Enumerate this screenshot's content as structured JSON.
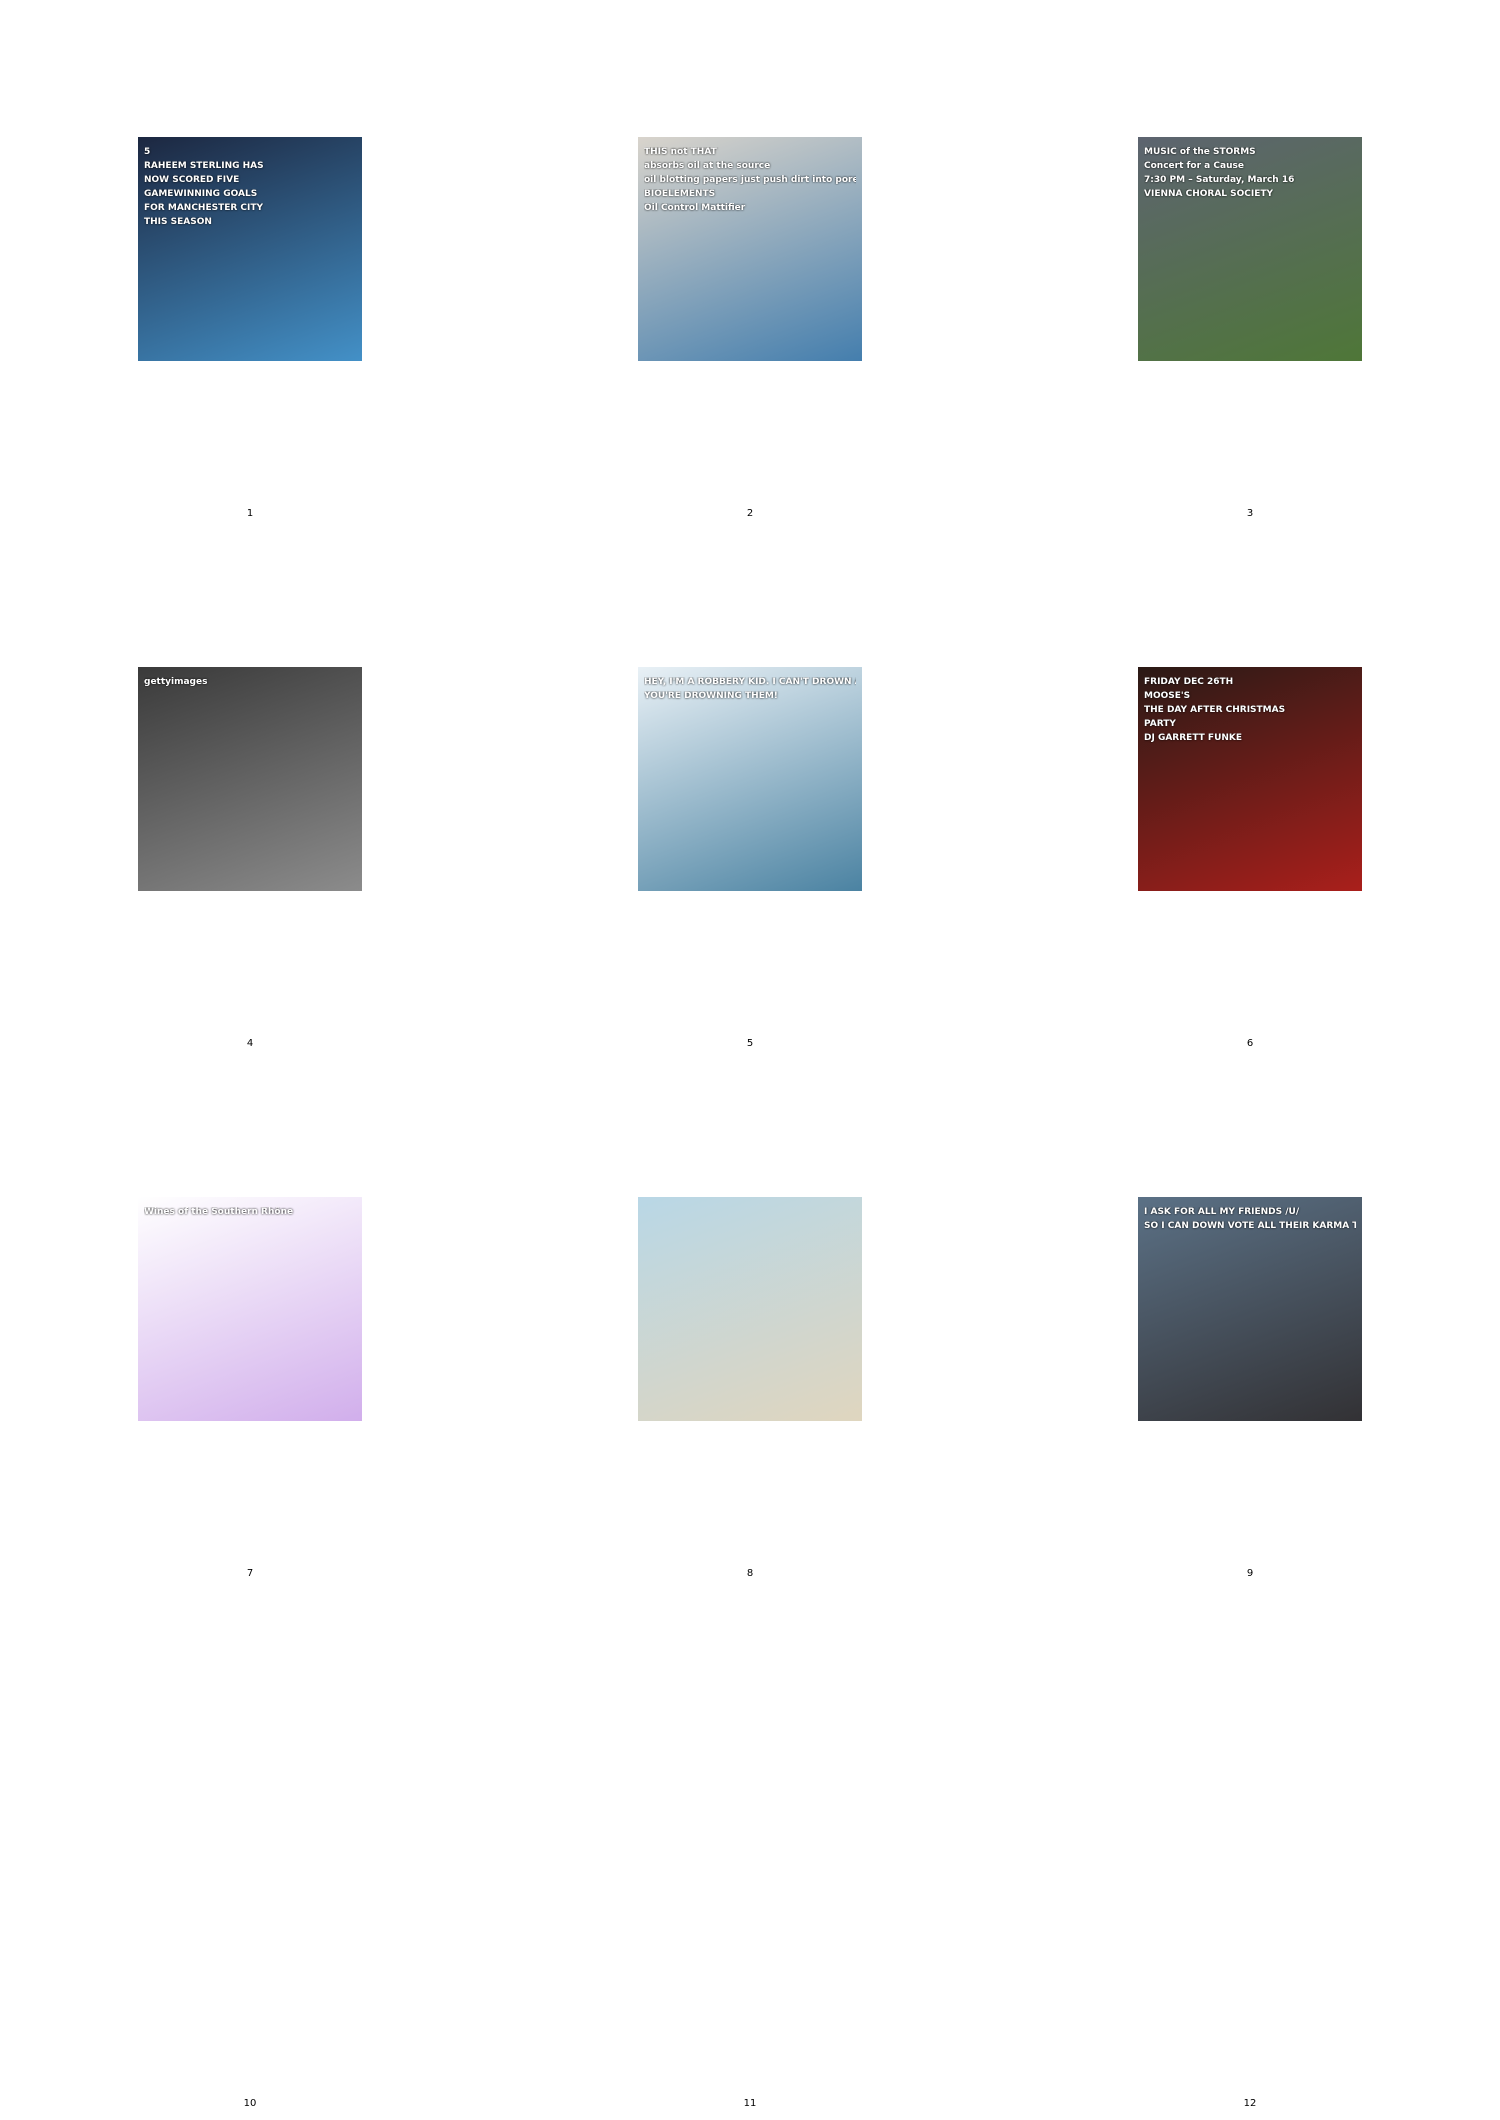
{
  "panels": [
    {
      "number": "1",
      "caption_lines": [
        "5",
        "RAHEEM STERLING HAS",
        "NOW SCORED FIVE",
        "GAMEWINNING GOALS",
        "FOR MANCHESTER CITY",
        "THIS SEASON"
      ],
      "colors": {
        "bg": "#1c2740",
        "accent": "#4aa3df"
      }
    },
    {
      "number": "2",
      "caption_lines": [
        "THIS not THAT",
        "absorbs oil at the source",
        "oil blotting papers just push dirt into pores",
        "BIOELEMENTS",
        "Oil Control Mattifier"
      ],
      "colors": {
        "bg": "#d9d4cc",
        "accent": "#2a6fa8"
      }
    },
    {
      "number": "3",
      "caption_lines": [
        "MUSIC of the STORMS",
        "Concert for a Cause",
        "7:30 PM – Saturday, March 16",
        "VIENNA CHORAL SOCIETY"
      ],
      "colors": {
        "bg": "#5d6470",
        "accent": "#4c7a2e"
      }
    },
    {
      "number": "4",
      "caption_lines": [
        "gettyimages"
      ],
      "colors": {
        "bg": "#3a3a3a",
        "accent": "#9a9a9a"
      }
    },
    {
      "number": "5",
      "caption_lines": [
        "HEY, I'M A ROBBERY KID. I CAN'T DROWN AND NEITHER CAN MY FRIENDS.",
        "YOU'RE DROWNING THEM!"
      ],
      "colors": {
        "bg": "#e9f1f6",
        "accent": "#2f6f93"
      }
    },
    {
      "number": "6",
      "caption_lines": [
        "FRIDAY DEC 26TH",
        "MOOSE'S",
        "THE DAY AFTER CHRISTMAS",
        "PARTY",
        "DJ GARRETT FUNKE"
      ],
      "colors": {
        "bg": "#2a1a16",
        "accent": "#c0201c"
      }
    },
    {
      "number": "7",
      "caption_lines": [
        "Wines of the Southern Rhône"
      ],
      "colors": {
        "bg": "#ffffff",
        "accent": "#c9a0e8"
      }
    },
    {
      "number": "8",
      "caption_lines": [],
      "colors": {
        "bg": "#b9d7e6",
        "accent": "#e6d6b8"
      }
    },
    {
      "number": "9",
      "caption_lines": [
        "I ASK FOR ALL MY FRIENDS /U/",
        "SO I CAN DOWN VOTE ALL THEIR KARMA TO MAKE ME FEEL BETTER"
      ],
      "colors": {
        "bg": "#5b7186",
        "accent": "#2b2626"
      }
    },
    {
      "number": "10"
    },
    {
      "number": "11"
    },
    {
      "number": "12"
    }
  ]
}
